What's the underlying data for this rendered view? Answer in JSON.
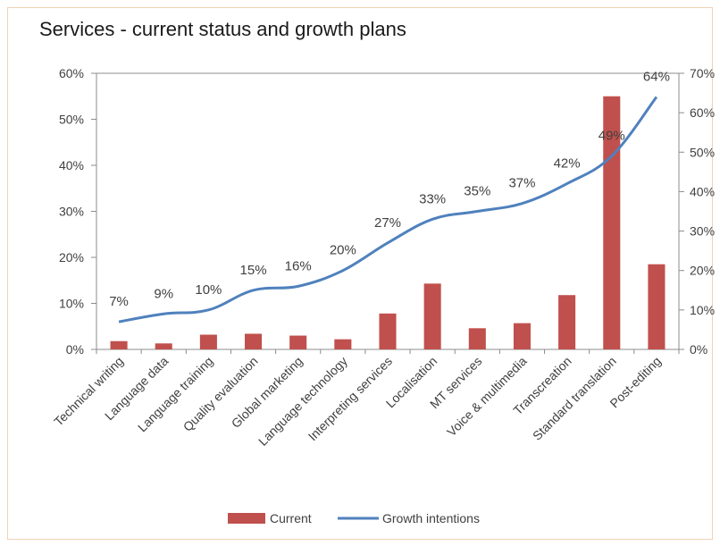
{
  "chart_data": {
    "type": "bar",
    "title": "Services - current status and growth plans",
    "categories": [
      "Technical writing",
      "Language data",
      "Language training",
      "Quality evaluation",
      "Global marketing",
      "Language technology",
      "Interpreting services",
      "Localisation",
      "MT services",
      "Voice & multimedia",
      "Transcreation",
      "Standard translation",
      "Post-editing"
    ],
    "series": [
      {
        "name": "Current",
        "type": "bar",
        "axis": "left",
        "color": "#c0504d",
        "values": [
          1.8,
          1.3,
          3.2,
          3.4,
          3.0,
          2.2,
          7.8,
          14.3,
          4.6,
          5.7,
          11.8,
          55.0,
          18.5
        ]
      },
      {
        "name": "Growth intentions",
        "type": "line",
        "axis": "right",
        "color": "#4f81bd",
        "values": [
          7,
          9,
          10,
          15,
          16,
          20,
          27,
          33,
          35,
          37,
          42,
          49,
          64
        ],
        "data_labels": [
          "7%",
          "9%",
          "10%",
          "15%",
          "16%",
          "20%",
          "27%",
          "33%",
          "35%",
          "37%",
          "42%",
          "49%",
          "64%"
        ]
      }
    ],
    "y_left": {
      "ylim": [
        0,
        60
      ],
      "ticks": [
        0,
        10,
        20,
        30,
        40,
        50,
        60
      ],
      "tick_labels": [
        "0%",
        "10%",
        "20%",
        "30%",
        "40%",
        "50%",
        "60%"
      ]
    },
    "y_right": {
      "ylim": [
        0,
        70
      ],
      "ticks": [
        0,
        10,
        20,
        30,
        40,
        50,
        60,
        70
      ],
      "tick_labels": [
        "0%",
        "10%",
        "20%",
        "30%",
        "40%",
        "50%",
        "60%",
        "70%"
      ]
    },
    "grid": false,
    "legend": {
      "position": "bottom",
      "entries": [
        "Current",
        "Growth intentions"
      ]
    },
    "xlabel": "",
    "ylabel": ""
  }
}
